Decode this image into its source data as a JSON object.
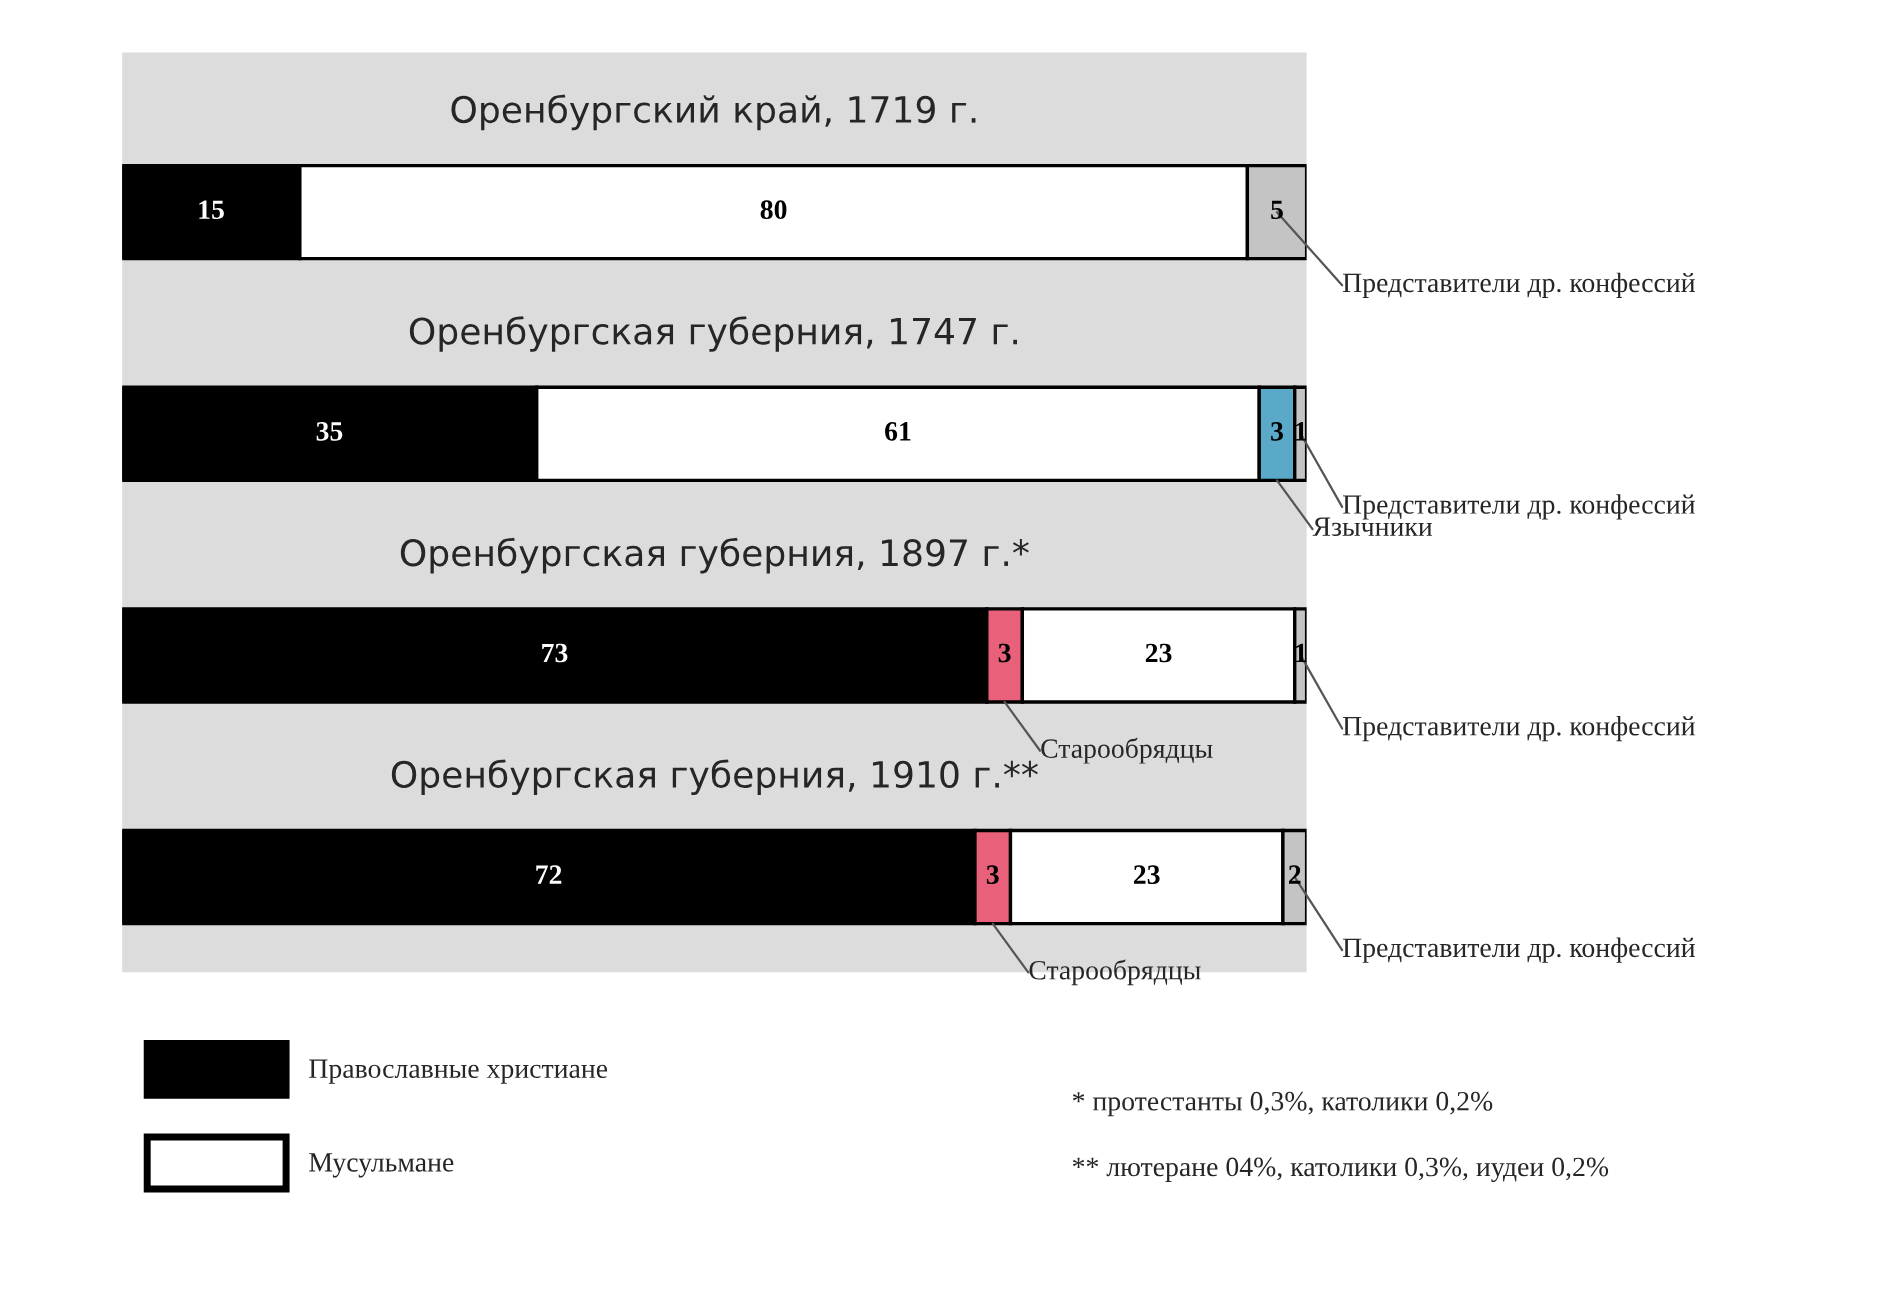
{
  "chart_data": {
    "type": "bar",
    "orientation": "horizontal",
    "stacked": true,
    "data_labels": true,
    "legend": "bottom left",
    "categories": [
      "Оренбургский край, 1719 г.",
      "Оренбургская губерния, 1747 г.",
      "Оренбургская губерния, 1897 г.*",
      "Оренбургская губерния, 1910 г.**"
    ],
    "series": [
      {
        "name": "Православные христиане",
        "color": "#000000",
        "values": [
          15,
          35,
          73,
          72
        ]
      },
      {
        "name": "Старообрядцы",
        "color": "#e8607a",
        "values": [
          null,
          null,
          3,
          3
        ]
      },
      {
        "name": "Мусульмане",
        "color": "#ffffff",
        "values": [
          80,
          61,
          23,
          23
        ]
      },
      {
        "name": "Язычники",
        "color": "#5aa9c8",
        "values": [
          null,
          3,
          null,
          null
        ]
      },
      {
        "name": "Представители др. конфессий",
        "color": "#c4c4c4",
        "values": [
          5,
          1,
          1,
          2
        ]
      }
    ],
    "annotations": [
      "* протестанты 0,3%, католики 0,2%",
      "** лютеране 04%, католики 0,3%, иудеи 0,2%"
    ]
  }
}
